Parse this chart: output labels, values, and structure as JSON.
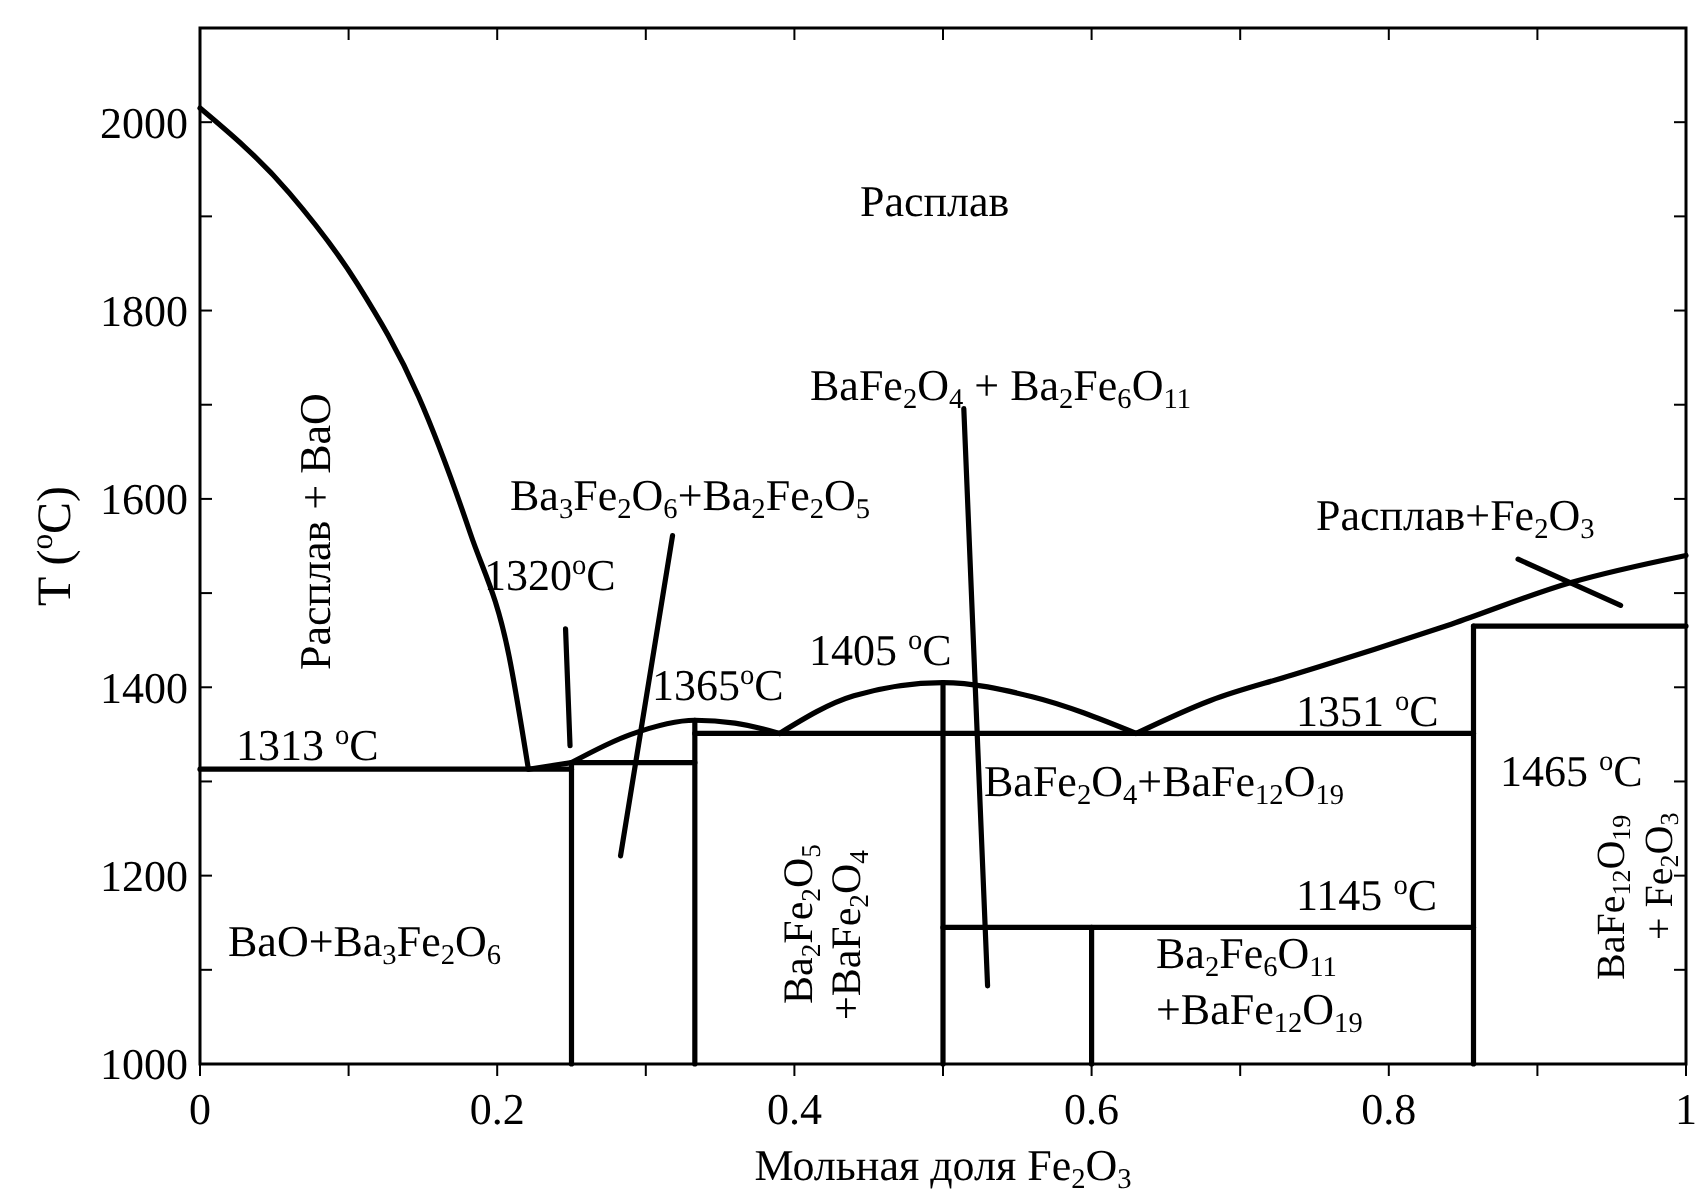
{
  "chart_data": {
    "type": "line",
    "xlabel": "Мольная доля Fe$_{2}$O$_{3}$",
    "ylabel": "T ($^{o}$C)",
    "xlim": [
      0,
      1
    ],
    "ylim": [
      1000,
      2100
    ],
    "xticks": [
      0,
      {
        "value": 0.1,
        "label": null
      },
      0.2,
      {
        "value": 0.3,
        "label": null
      },
      0.4,
      {
        "value": 0.5,
        "label": null
      },
      0.6,
      {
        "value": 0.7,
        "label": null
      },
      0.8,
      {
        "value": 0.9,
        "label": null
      },
      1
    ],
    "yticks": [
      1000,
      {
        "value": 1100,
        "label": null
      },
      1200,
      {
        "value": 1300,
        "label": null
      },
      1400,
      {
        "value": 1500,
        "label": null
      },
      1600,
      {
        "value": 1700,
        "label": null
      },
      1800,
      {
        "value": 1900,
        "label": null
      },
      2000
    ],
    "grid": false,
    "marker": "none",
    "line_style": "solid",
    "series": [
      {
        "color": "#000000",
        "x": [
          0,
          0.06,
          0.106,
          0.147,
          0.182,
          0.208,
          0.221
        ],
        "values": [
          2015,
          1925,
          1828,
          1709,
          1563,
          1433,
          1313
        ]
      },
      {
        "color": "#000000",
        "x": [
          0,
          0.25
        ],
        "values": [
          1313,
          1313
        ]
      },
      {
        "color": "#000000",
        "x": [
          0.221,
          0.25,
          0.333
        ],
        "values": [
          1313,
          1320,
          1320
        ]
      },
      {
        "color": "#000000",
        "x": [
          0.25,
          0.25
        ],
        "values": [
          1000,
          1320
        ]
      },
      {
        "color": "#000000",
        "x": [
          0.25,
          0.29,
          0.333,
          0.36,
          0.39
        ],
        "values": [
          1320,
          1350,
          1365,
          1362,
          1351
        ]
      },
      {
        "color": "#000000",
        "x": [
          0.333,
          0.333
        ],
        "values": [
          1000,
          1365
        ]
      },
      {
        "color": "#000000",
        "x": [
          0.333,
          0.857
        ],
        "values": [
          1351,
          1351
        ]
      },
      {
        "color": "#000000",
        "x": [
          0.39,
          0.44,
          0.5,
          0.56,
          0.63
        ],
        "values": [
          1351,
          1391,
          1405,
          1390,
          1351
        ]
      },
      {
        "color": "#000000",
        "x": [
          0.5,
          0.5
        ],
        "values": [
          1000,
          1405
        ]
      },
      {
        "color": "#000000",
        "x": [
          0.5,
          0.857
        ],
        "values": [
          1145,
          1145
        ]
      },
      {
        "color": "#000000",
        "x": [
          0.6,
          0.6
        ],
        "values": [
          1000,
          1145
        ]
      },
      {
        "color": "#000000",
        "x": [
          0.63,
          0.68,
          0.735,
          0.79,
          0.842,
          0.922,
          1
        ],
        "values": [
          1351,
          1386,
          1413,
          1440,
          1467,
          1511,
          1540
        ]
      },
      {
        "color": "#000000",
        "x": [
          0.857,
          0.857
        ],
        "values": [
          1000,
          1465
        ]
      },
      {
        "color": "#000000",
        "x": [
          0.857,
          1
        ],
        "values": [
          1465,
          1465
        ]
      },
      {
        "color": "#000000",
        "x": [
          0.246,
          0.249
        ],
        "values": [
          1462,
          1338
        ]
      },
      {
        "color": "#000000",
        "x": [
          0.318,
          0.283
        ],
        "values": [
          1561,
          1221
        ]
      },
      {
        "color": "#000000",
        "x": [
          0.514,
          0.53
        ],
        "values": [
          1696,
          1083
        ]
      },
      {
        "color": "#000000",
        "x": [
          0.887,
          0.956
        ],
        "values": [
          1536,
          1487
        ]
      }
    ],
    "annotations": [
      "Расплав",
      "Расплав + BaO",
      "1320$^{o}$C",
      "Ba$_{3}$Fe$_{2}$O$_{6}$+Ba$_{2}$Fe$_{2}$O$_{5}$",
      "1365$^{o}$C",
      {
        "text": "1405 $^{o}$C",
        "x": 0.5,
        "y": 1405
      },
      "BaFe$_{2}$O$_{4}$ + Ba$_{2}$Fe$_{6}$O$_{11}$",
      "Расплав+Fe$_{2}$O$_{3}$",
      "1313 $^{o}$C",
      "1351 $^{o}$C",
      "1465 $^{o}$C",
      "BaFe$_{2}$O$_{4}$+BaFe$_{12}$O$_{19}$",
      "1145 $^{o}$C",
      "BaO+Ba$_{3}$Fe$_{2}$O$_{6}$",
      "Ba$_{2}$Fe$_{2}$O$_{5}$",
      "+BaFe$_{2}$O$_{4}$",
      "Ba$_{2}$Fe$_{6}$O$_{11}$",
      "+BaFe$_{12}$O$_{19}$",
      "BaFe$_{12}$O$_{19}$",
      "+ Fe$_{2}$O$_{3}$"
    ]
  }
}
